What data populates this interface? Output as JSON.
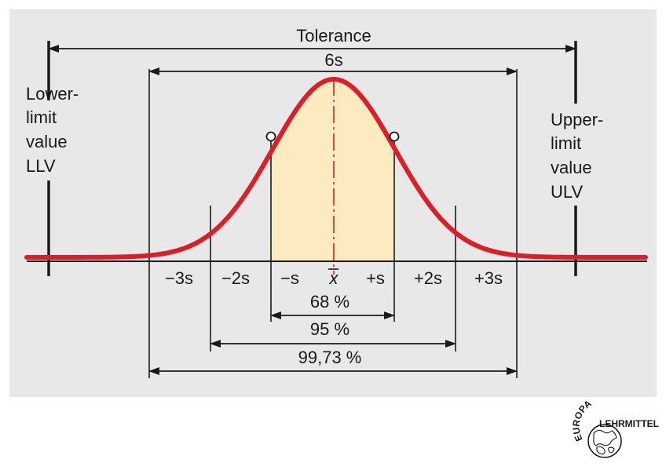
{
  "diagram": {
    "tolerance_label": "Tolerance",
    "six_s_label": "6s",
    "lower_limit_lines": [
      "Lower-",
      "limit",
      "value",
      "LLV"
    ],
    "upper_limit_lines": [
      "Upper-",
      "limit",
      "value",
      "ULV"
    ],
    "axis_labels": [
      "−3s",
      "−2s",
      "−s",
      "x",
      "+s",
      "+2s",
      "+3s"
    ],
    "coverage_labels": [
      "68 %",
      "95 %",
      "99,73 %"
    ],
    "colors": {
      "panel_background": "#e8e8e8",
      "curve": "#dc1e28",
      "fill_one_sigma": "#fcebc0",
      "lines": "#1a1a1a"
    }
  },
  "logo": {
    "top_text": "EUROPA",
    "side_text": "LEHRMITTEL"
  }
}
